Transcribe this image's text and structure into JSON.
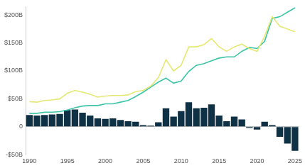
{
  "chart_data": {
    "type": "bar",
    "categories": [
      "1990",
      null,
      null,
      null,
      null,
      "1995",
      null,
      null,
      null,
      null,
      "2000",
      null,
      null,
      null,
      null,
      "2005",
      null,
      null,
      null,
      null,
      "2010",
      null,
      null,
      null,
      null,
      "2015",
      null,
      null,
      null,
      null,
      "2020",
      null,
      null,
      null,
      null,
      "2025"
    ],
    "series": [
      {
        "type": "bar",
        "color": "#0f3146",
        "values": [
          21,
          20,
          21,
          22,
          23,
          30,
          31,
          25,
          20,
          15,
          14,
          15,
          12,
          10,
          9,
          3,
          2,
          8,
          33,
          18,
          28,
          44,
          33,
          34,
          40,
          20,
          10,
          18,
          13,
          -2,
          -5,
          9,
          3,
          -18,
          -30,
          -43
        ]
      },
      {
        "type": "line",
        "color": "#e6e875",
        "values": [
          45,
          44,
          47,
          48,
          50,
          60,
          65,
          62,
          58,
          53,
          55,
          56,
          56,
          57,
          63,
          65,
          73,
          88,
          120,
          100,
          110,
          143,
          143,
          147,
          158,
          143,
          135,
          143,
          148,
          140,
          135,
          162,
          197,
          180,
          175,
          170
        ]
      },
      {
        "type": "line",
        "color": "#3cc4a6",
        "values": [
          24,
          24,
          26,
          26,
          27,
          30,
          34,
          37,
          38,
          38,
          41,
          41,
          44,
          47,
          54,
          62,
          71,
          80,
          87,
          78,
          82,
          99,
          110,
          113,
          118,
          123,
          125,
          125,
          135,
          142,
          140,
          153,
          194,
          197,
          205,
          213
        ]
      }
    ],
    "ylim": [
      -50,
      215
    ],
    "yticks": [
      {
        "value": -50,
        "label": "-$50B"
      },
      0,
      {
        "value": 50,
        "label": "$50B"
      },
      {
        "value": 100,
        "label": "$100B"
      },
      {
        "value": 150,
        "label": "$150B"
      },
      {
        "value": 200,
        "label": "$200B"
      }
    ],
    "grid": false
  }
}
